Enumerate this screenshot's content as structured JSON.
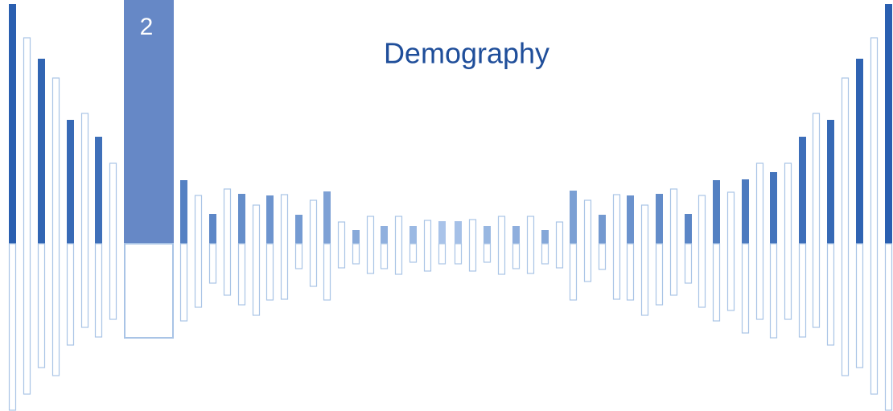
{
  "slide": {
    "number": "2",
    "title": "Demography"
  }
}
